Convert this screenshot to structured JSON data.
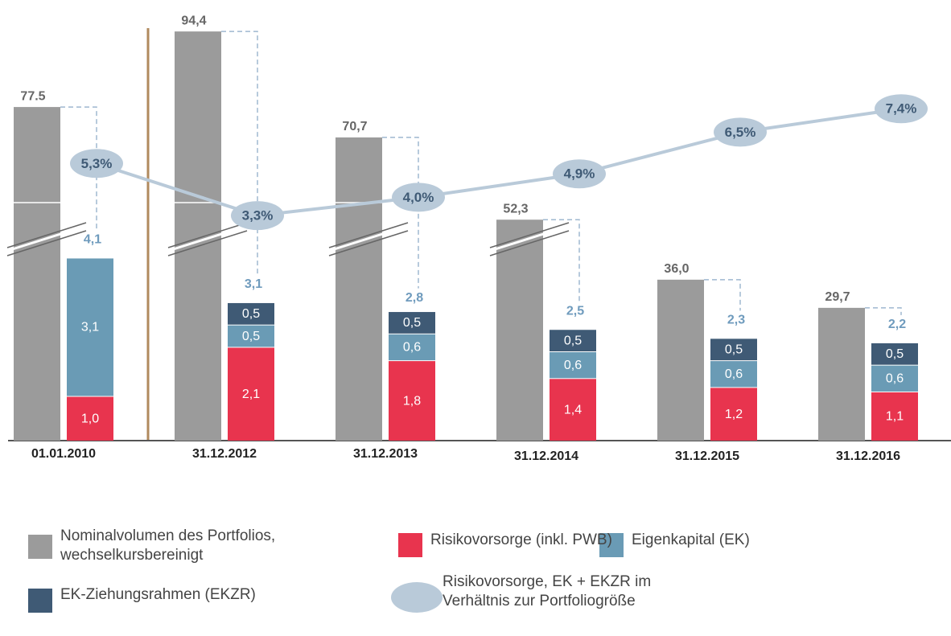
{
  "chart_data": {
    "type": "bar",
    "categories": [
      "01.01.2010",
      "31.12.2012",
      "31.12.2013",
      "31.12.2014",
      "31.12.2015",
      "31.12.2016"
    ],
    "series": [
      {
        "name": "Nominalvolumen des Portfolios, wechselkursbereinigt",
        "color": "#9b9b9b",
        "values": [
          77.5,
          94.4,
          70.7,
          52.3,
          36.0,
          29.7
        ],
        "value_labels": [
          "77.5",
          "94,4",
          "70,7",
          "52,3",
          "36,0",
          "29,7"
        ]
      },
      {
        "name": "Risikovorsorge (inkl. PWB)",
        "color": "#e8344e",
        "values": [
          1.0,
          2.1,
          1.8,
          1.4,
          1.2,
          1.1
        ],
        "value_labels": [
          "1,0",
          "2,1",
          "1,8",
          "1,4",
          "1,2",
          "1,1"
        ]
      },
      {
        "name": "Eigenkapital (EK)",
        "color": "#6a9bb5",
        "values": [
          3.1,
          0.5,
          0.6,
          0.6,
          0.6,
          0.6
        ],
        "value_labels": [
          "3,1",
          "0,5",
          "0,6",
          "0,6",
          "0,6",
          "0,6"
        ]
      },
      {
        "name": "EK-Ziehungsrahmen (EKZR)",
        "color": "#3f5a75",
        "values": [
          null,
          0.5,
          0.5,
          0.5,
          0.5,
          0.5
        ],
        "value_labels": [
          null,
          "0,5",
          "0,5",
          "0,5",
          "0,5",
          "0,5"
        ]
      },
      {
        "name": "Risikovorsorge, EK + EKZR im Verhältnis zur Portfoliogröße",
        "type": "line",
        "color": "#b9cad9",
        "values": [
          5.3,
          3.3,
          4.0,
          4.9,
          6.5,
          7.4
        ],
        "value_labels": [
          "5,3%",
          "3,3%",
          "4,0%",
          "4,9%",
          "6,5%",
          "7,4%"
        ]
      }
    ],
    "totals": {
      "values": [
        4.1,
        3.1,
        2.8,
        2.5,
        2.3,
        2.2
      ],
      "value_labels": [
        "4,1",
        "3,1",
        "2,8",
        "2,5",
        "2,3",
        "2,2"
      ]
    }
  }
}
